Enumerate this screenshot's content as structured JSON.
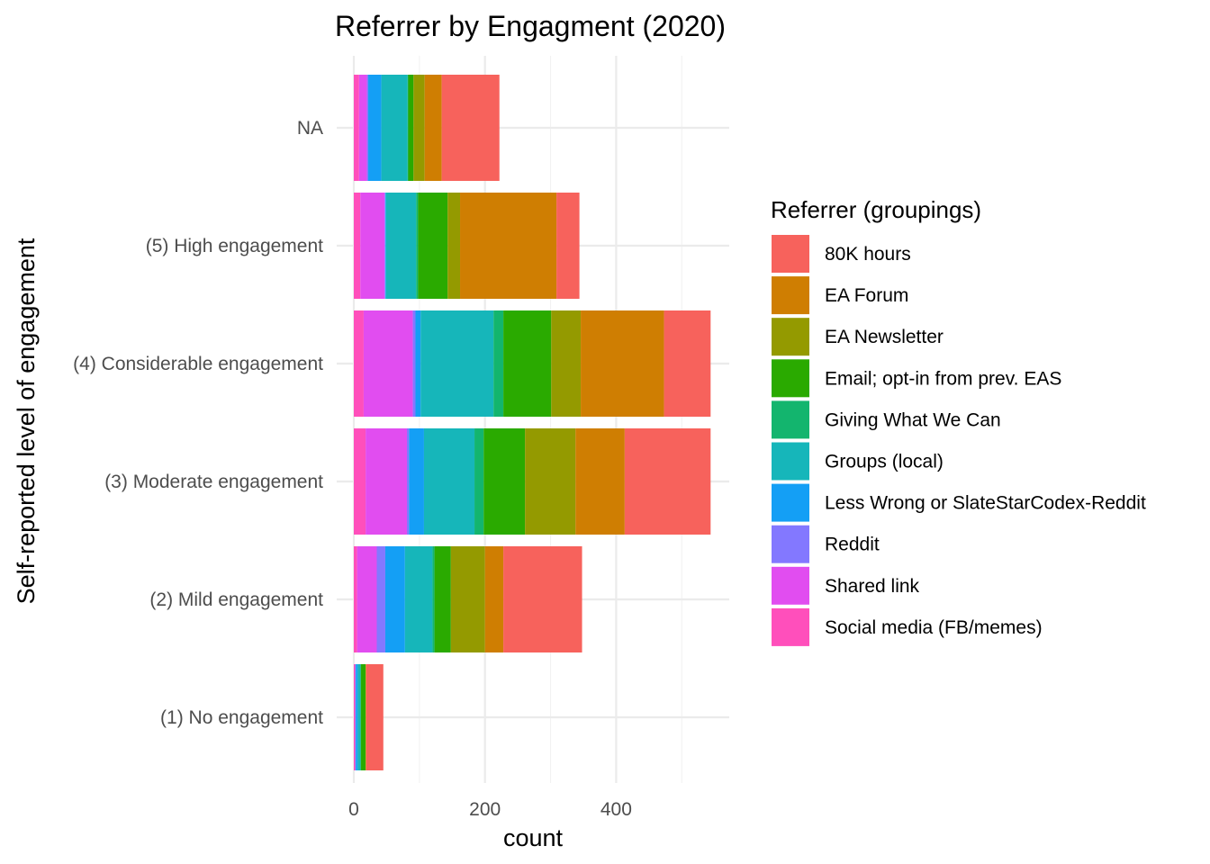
{
  "chart_data": {
    "type": "bar",
    "orientation": "horizontal",
    "stacked": true,
    "title": "Referrer by Engagment (2020)",
    "xlabel": "count",
    "ylabel": "Self-reported level of engagement",
    "xlim": [
      0,
      550
    ],
    "x_ticks": [
      0,
      200,
      400
    ],
    "x_tick_labels": [
      "0",
      "200",
      "400"
    ],
    "grid": true,
    "legend_position": "right",
    "legend_title": "Referrer (groupings)",
    "categories": [
      "(1) No engagement",
      "(2) Mild engagement",
      "(3) Moderate engagement",
      "(4) Considerable engagement",
      "(5) High engagement",
      "NA"
    ],
    "series": [
      {
        "name": "Social media (FB/memes)",
        "color": "#FF4FBB",
        "values": [
          2,
          5,
          18,
          15,
          10,
          8
        ]
      },
      {
        "name": "Shared link",
        "color": "#E14DF0",
        "values": [
          0,
          30,
          63,
          75,
          37,
          12
        ]
      },
      {
        "name": "Reddit",
        "color": "#8378FF",
        "values": [
          1,
          13,
          3,
          4,
          1,
          2
        ]
      },
      {
        "name": "Less Wrong or SlateStarCodex-Reddit",
        "color": "#149FF5",
        "values": [
          3,
          30,
          23,
          8,
          1,
          20
        ]
      },
      {
        "name": "Groups (local)",
        "color": "#16B6BA",
        "values": [
          4,
          42,
          77,
          111,
          46,
          40
        ]
      },
      {
        "name": "Giving What We Can",
        "color": "#13B56E",
        "values": [
          1,
          3,
          14,
          15,
          3,
          1
        ]
      },
      {
        "name": "Email; opt-in from prev. EAS",
        "color": "#2AAA00",
        "values": [
          7,
          25,
          63,
          73,
          45,
          8
        ]
      },
      {
        "name": "EA Newsletter",
        "color": "#949A00",
        "values": [
          0,
          52,
          77,
          45,
          19,
          17
        ]
      },
      {
        "name": "EA Forum",
        "color": "#CF7E02",
        "values": [
          1,
          28,
          75,
          127,
          147,
          26
        ]
      },
      {
        "name": "80K hours",
        "color": "#F7625C",
        "values": [
          26,
          120,
          131,
          71,
          35,
          88
        ]
      }
    ]
  }
}
